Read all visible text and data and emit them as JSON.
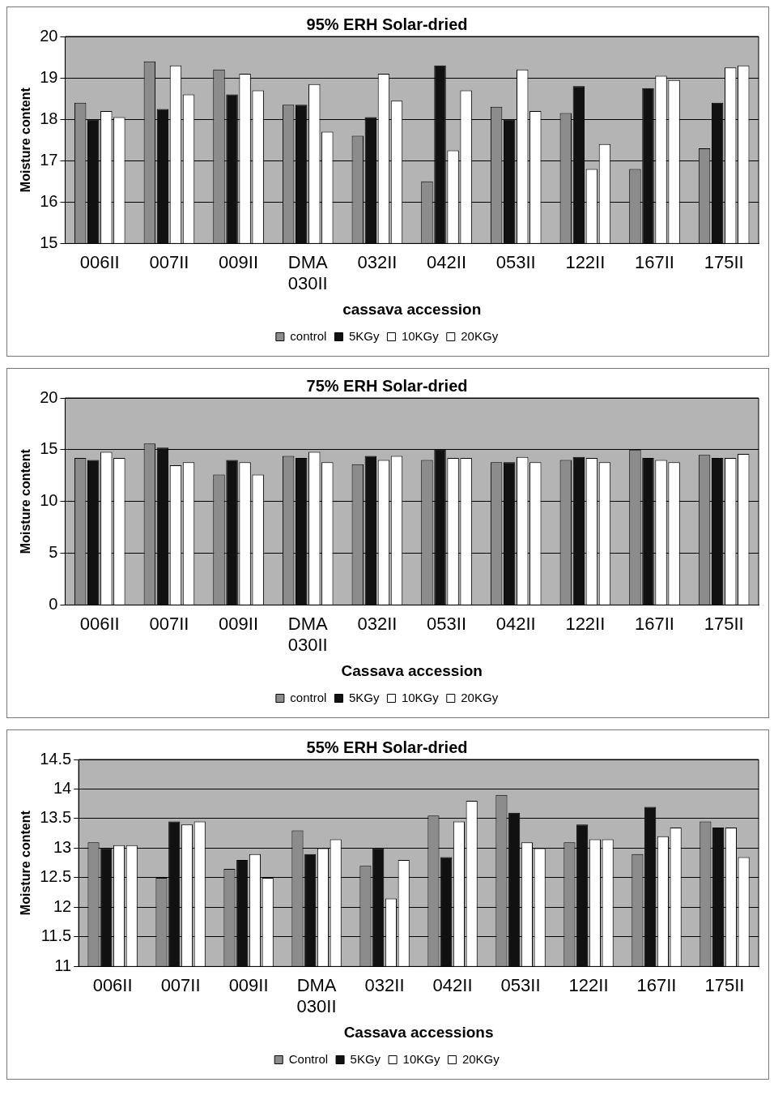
{
  "chart_data": [
    {
      "type": "bar",
      "title": "95% ERH Solar-dried",
      "xlabel": "cassava accession",
      "ylabel": "Moisture content",
      "categories": [
        "006II",
        "007II",
        "009II",
        "DMA 030II",
        "032II",
        "042II",
        "053II",
        "122II",
        "167II",
        "175II"
      ],
      "ylim": [
        15,
        20
      ],
      "yticks": [
        15,
        16,
        17,
        18,
        19,
        20
      ],
      "grid": "y",
      "legend": "bottom",
      "series": [
        {
          "name": "control",
          "color": "#8c8c8c",
          "values": [
            18.4,
            19.4,
            19.2,
            18.35,
            17.6,
            16.5,
            18.3,
            18.15,
            16.8,
            17.3
          ]
        },
        {
          "name": "5KGy",
          "color": "#111111",
          "values": [
            18.0,
            18.25,
            18.6,
            18.35,
            18.05,
            19.3,
            18.0,
            18.8,
            18.75,
            18.4
          ]
        },
        {
          "name": "10KGy",
          "color": "#ffffff",
          "values": [
            18.2,
            19.3,
            19.1,
            18.85,
            19.1,
            17.25,
            19.2,
            16.8,
            19.05,
            19.25
          ]
        },
        {
          "name": "20KGy",
          "color": "#ffffff",
          "values": [
            18.05,
            18.6,
            18.7,
            17.7,
            18.45,
            18.7,
            18.2,
            17.4,
            18.95,
            19.3
          ]
        }
      ]
    },
    {
      "type": "bar",
      "title": "75% ERH Solar-dried",
      "xlabel": "Cassava accession",
      "ylabel": "Moisture content",
      "categories": [
        "006II",
        "007II",
        "009II",
        "DMA 030II",
        "032II",
        "053II",
        "042II",
        "122II",
        "167II",
        "175II"
      ],
      "ylim": [
        0,
        20
      ],
      "yticks": [
        0,
        5,
        10,
        15,
        20
      ],
      "grid": "y",
      "legend": "bottom",
      "series": [
        {
          "name": "control",
          "color": "#8c8c8c",
          "values": [
            14.2,
            15.6,
            12.6,
            14.4,
            13.6,
            14.0,
            13.8,
            14.0,
            15.0,
            14.5
          ]
        },
        {
          "name": "5KGy",
          "color": "#111111",
          "values": [
            14.0,
            15.2,
            14.0,
            14.2,
            14.4,
            15.0,
            13.8,
            14.3,
            14.2,
            14.2
          ]
        },
        {
          "name": "10KGy",
          "color": "#ffffff",
          "values": [
            14.8,
            13.5,
            13.8,
            14.8,
            14.0,
            14.2,
            14.3,
            14.2,
            14.0,
            14.2
          ]
        },
        {
          "name": "20KGy",
          "color": "#ffffff",
          "values": [
            14.2,
            13.8,
            12.6,
            13.8,
            14.4,
            14.2,
            13.8,
            13.8,
            13.8,
            14.6
          ]
        }
      ]
    },
    {
      "type": "bar",
      "title": "55% ERH Solar-dried",
      "xlabel": "Cassava accessions",
      "ylabel": "Moisture content",
      "categories": [
        "006II",
        "007II",
        "009II",
        "DMA 030II",
        "032II",
        "042II",
        "053II",
        "122II",
        "167II",
        "175II"
      ],
      "ylim": [
        11,
        14.5
      ],
      "yticks": [
        11,
        11.5,
        12,
        12.5,
        13,
        13.5,
        14,
        14.5
      ],
      "grid": "y",
      "legend": "bottom",
      "series": [
        {
          "name": "Control",
          "color": "#8c8c8c",
          "values": [
            13.1,
            12.5,
            12.65,
            13.3,
            12.7,
            13.55,
            13.9,
            13.1,
            12.9,
            13.45
          ]
        },
        {
          "name": "5KGy",
          "color": "#111111",
          "values": [
            13.0,
            13.45,
            12.8,
            12.9,
            13.0,
            12.85,
            13.6,
            13.4,
            13.7,
            13.35
          ]
        },
        {
          "name": "10KGy",
          "color": "#ffffff",
          "values": [
            13.05,
            13.4,
            12.9,
            13.0,
            12.15,
            13.45,
            13.1,
            13.15,
            13.2,
            13.35
          ]
        },
        {
          "name": "20KGy",
          "color": "#ffffff",
          "values": [
            13.05,
            13.45,
            12.5,
            13.15,
            12.8,
            13.8,
            13.0,
            13.15,
            13.35,
            12.85
          ]
        }
      ]
    }
  ]
}
